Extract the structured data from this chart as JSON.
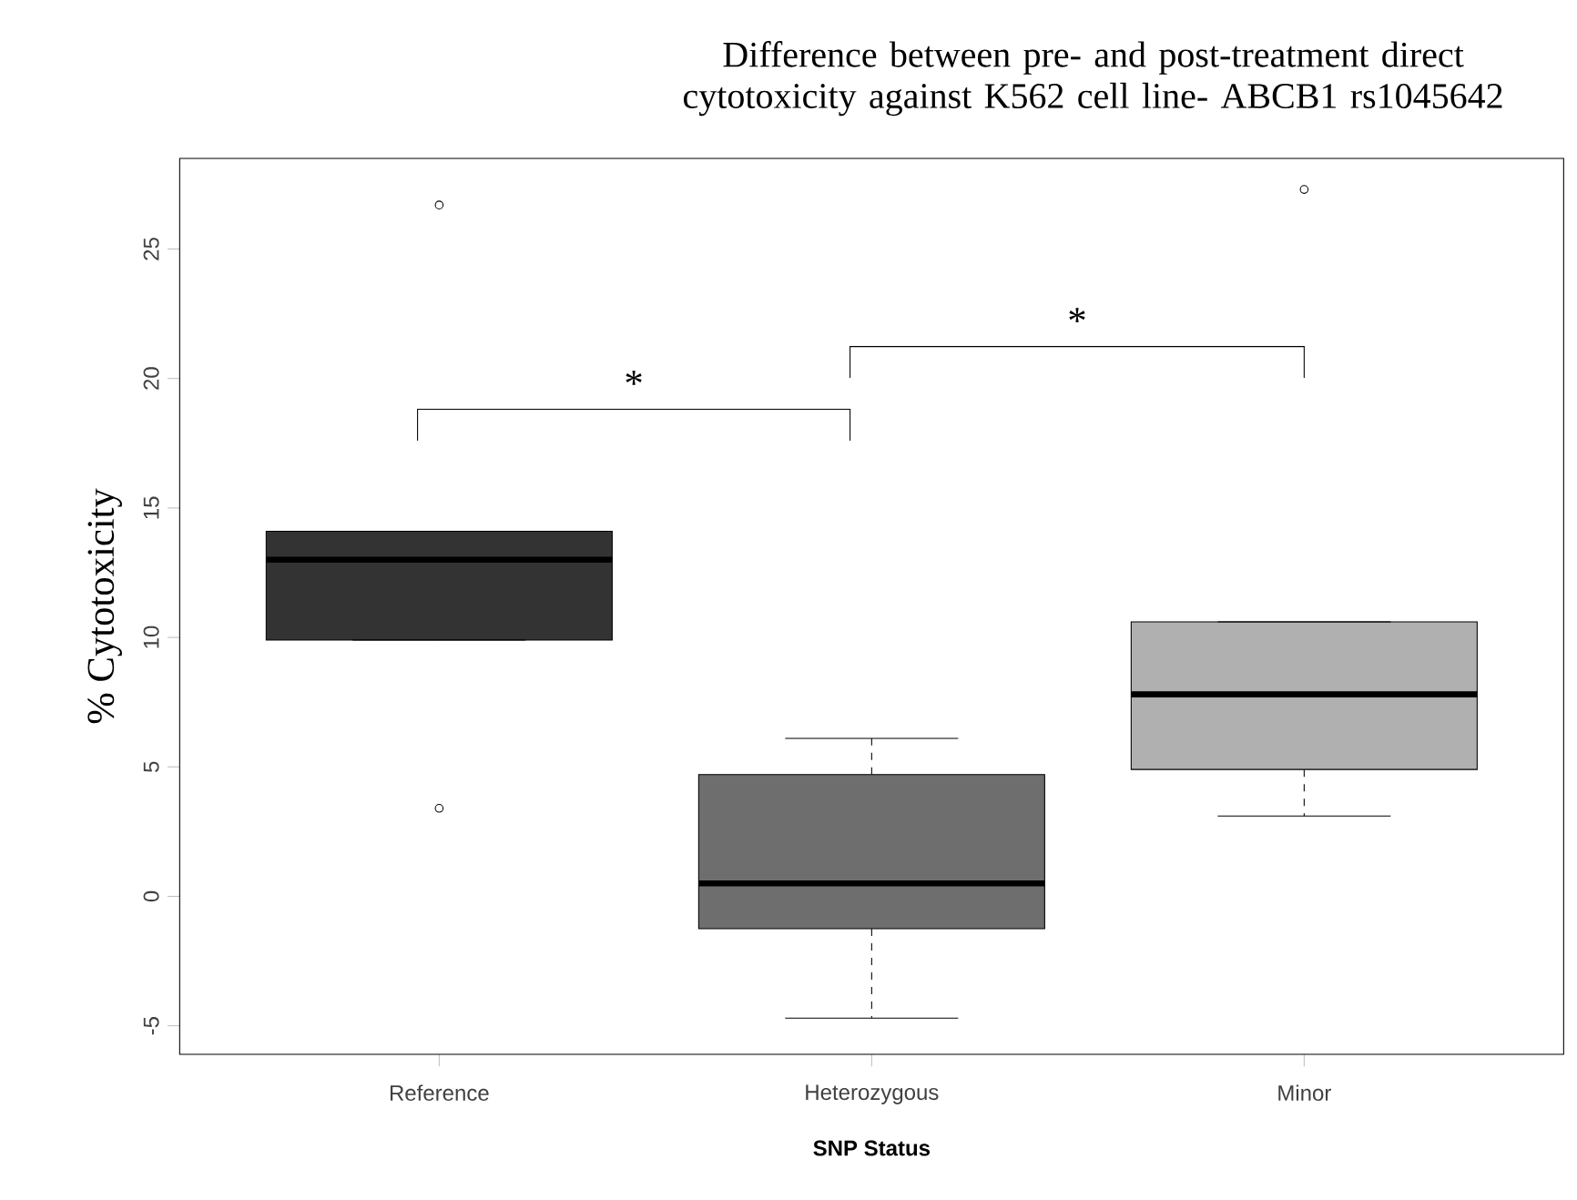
{
  "chart_data": {
    "type": "box",
    "title": "Difference between pre- and post-treatment direct cytotoxicity against K562 cell line- ABCB1 rs1045642",
    "xlabel": "SNP Status",
    "ylabel": "% Cytotoxicity",
    "categories": [
      "Reference",
      "Heterozygous",
      "Minor"
    ],
    "colors": [
      "#333333",
      "#6e6e6e",
      "#b0b0b0"
    ],
    "boxes": [
      {
        "low": 9.9,
        "q1": 9.9,
        "median": 13.0,
        "q3": 14.1,
        "high": 14.1,
        "outliers": [
          26.7,
          3.4
        ]
      },
      {
        "low": -4.7,
        "q1": -1.25,
        "median": 0.5,
        "q3": 4.7,
        "high": 6.1
      },
      {
        "low": 3.1,
        "q1": 4.9,
        "median": 7.8,
        "q3": 10.6,
        "high": 10.6,
        "outliers": [
          27.3
        ]
      }
    ],
    "ylim": [
      -6.1,
      28.5
    ],
    "yticks": [
      -5,
      0,
      5,
      10,
      15,
      20,
      25
    ],
    "grid": false,
    "annotations": [
      "*",
      "*"
    ]
  }
}
